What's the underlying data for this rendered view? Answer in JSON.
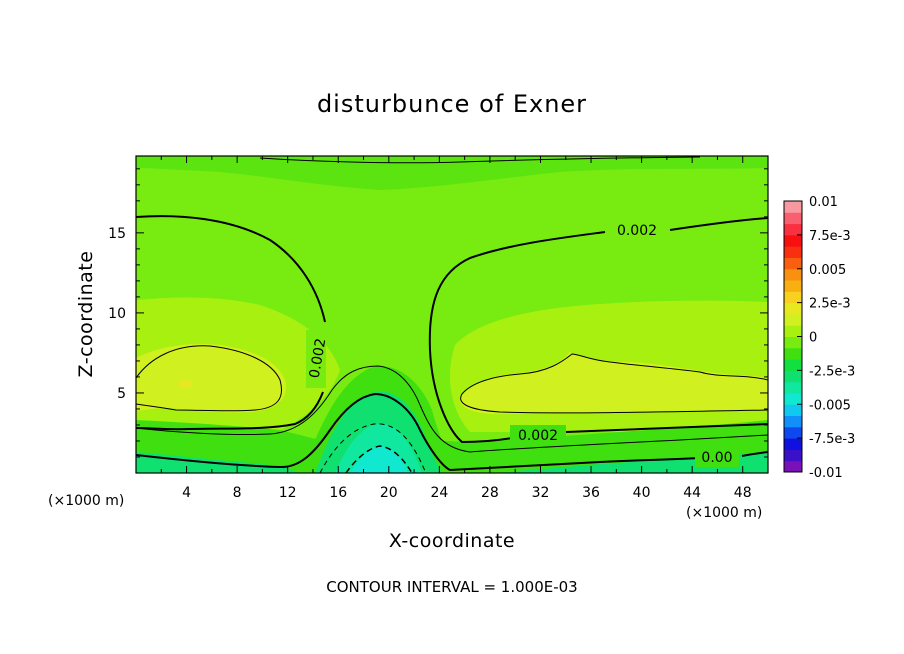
{
  "chart_data": {
    "type": "heatmap",
    "subtype": "filled-contour",
    "title": "disturbunce of Exner",
    "xlabel": "X-coordinate",
    "ylabel": "Z-coordinate",
    "x_unit": "(×1000 m)",
    "x_unit_right": "(×1000 m)",
    "xlim": [
      0,
      50
    ],
    "ylim": [
      0,
      19.8
    ],
    "x_ticks": [
      "4",
      "8",
      "12",
      "16",
      "20",
      "24",
      "28",
      "32",
      "36",
      "40",
      "44",
      "48"
    ],
    "y_ticks": [
      "5",
      "10",
      "15"
    ],
    "x_tick_values": [
      4,
      8,
      12,
      16,
      20,
      24,
      28,
      32,
      36,
      40,
      44,
      48
    ],
    "y_tick_values": [
      5,
      10,
      15
    ],
    "contour_interval_text": "CONTOUR INTERVAL = 1.000E-03",
    "contour_labels": [
      "0.002",
      "0.002",
      "0.002",
      "0.00"
    ],
    "colorbar": {
      "labels": [
        "0.01",
        "7.5e-3",
        "0.005",
        "2.5e-3",
        "0",
        "-2.5e-3",
        "-0.005",
        "-7.5e-3",
        "-0.01"
      ],
      "label_values": [
        0.01,
        0.0075,
        0.005,
        0.0025,
        0,
        -0.0025,
        -0.005,
        -0.0075,
        -0.01
      ],
      "min": -0.01,
      "max": 0.01,
      "colors": [
        "#7a10b8",
        "#3a10c8",
        "#1010e0",
        "#1048f0",
        "#1090f8",
        "#10c8f0",
        "#10e8d0",
        "#10e8a0",
        "#10e070",
        "#10e040",
        "#40e010",
        "#78ec10",
        "#a8f010",
        "#d0f020",
        "#e8e820",
        "#f8d020",
        "#f8b010",
        "#f89010",
        "#f86010",
        "#f83010",
        "#f81010",
        "#f83040",
        "#f86070",
        "#f898a0"
      ]
    },
    "field_description": {
      "background_value": 0.0012,
      "upper_positive_band": {
        "z_range": [
          4.5,
          11
        ],
        "peak_value": 0.0035,
        "max_point": [
          4,
          5.7
        ]
      },
      "central_negative_dome": {
        "x_center": 19,
        "top_z": 6.5,
        "core_value": -0.0025
      },
      "surface_layer_value": -0.0005
    }
  },
  "labels": {
    "title": "disturbunce of Exner",
    "xlabel": "X-coordinate",
    "ylabel": "Z-coordinate",
    "x_unit_left": "(×1000 m)",
    "x_unit_right": "(×1000 m)",
    "note": "CONTOUR INTERVAL = 1.000E-03"
  }
}
